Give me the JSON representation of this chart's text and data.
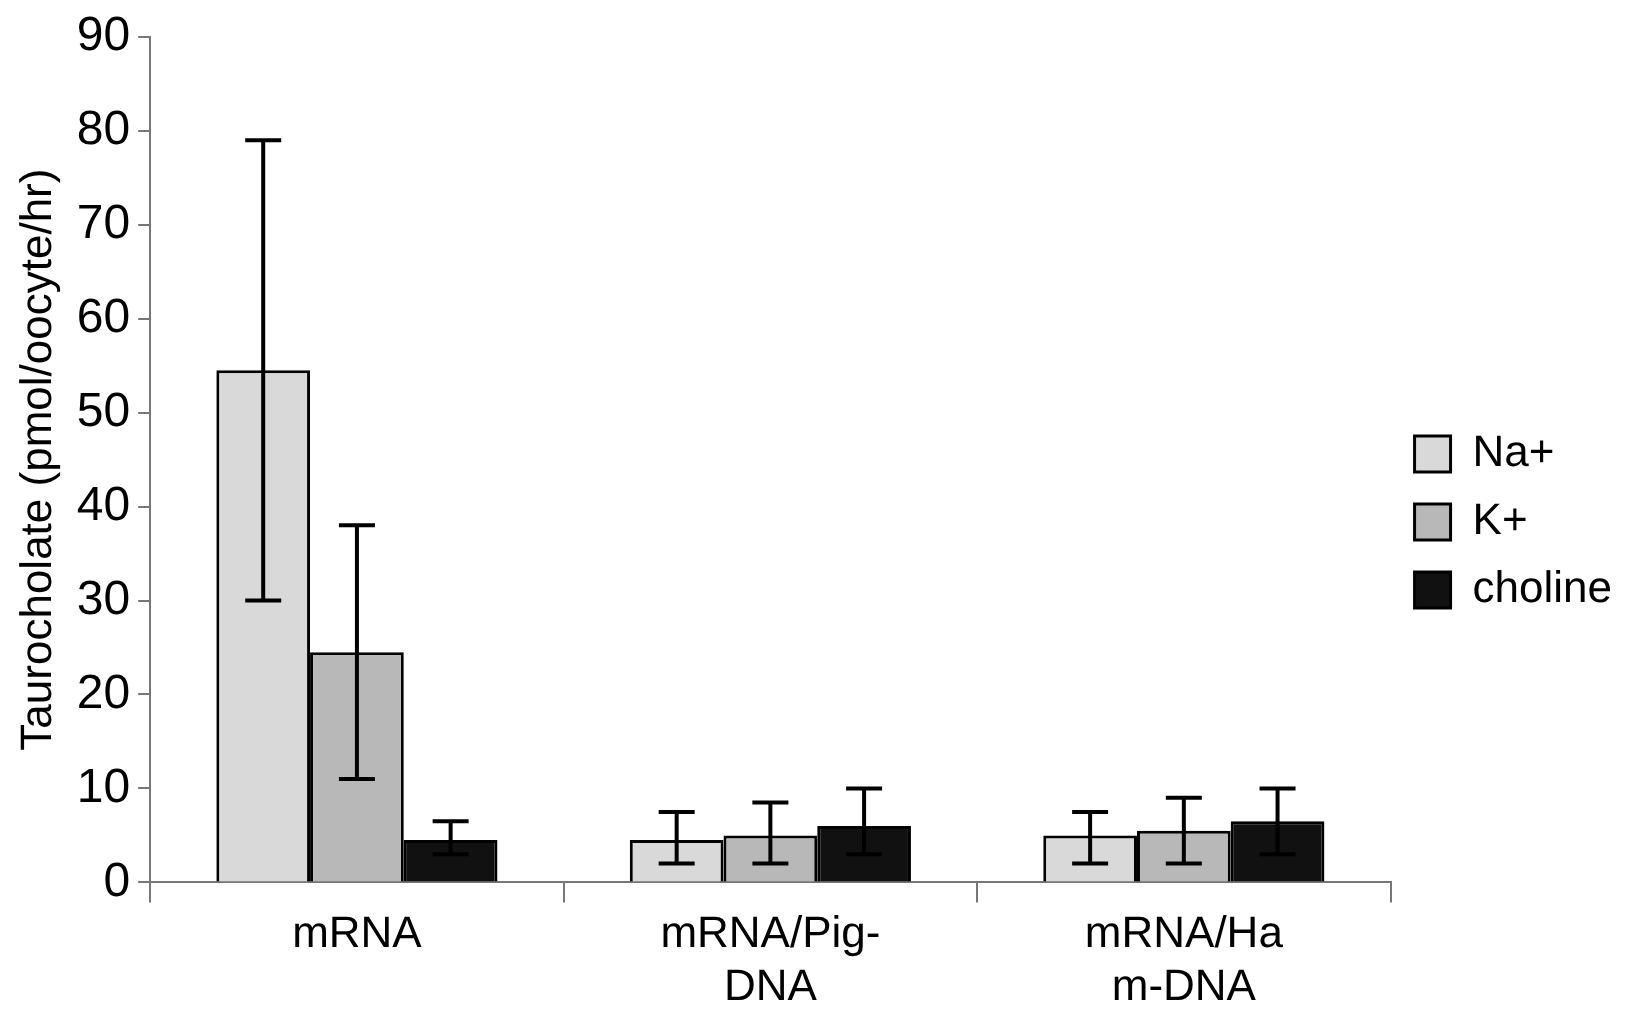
{
  "chart_data": {
    "type": "bar",
    "ylabel": "Taurocholate (pmol/oocyte/hr)",
    "categories": [
      "mRNA",
      "mRNA/Pig-\nDNA",
      "mRNA/Ha\nm-DNA"
    ],
    "series": [
      {
        "name": "Na+",
        "color": "#d9d9d9",
        "values": [
          54.5,
          4.5,
          5
        ],
        "errors": [
          [
            30,
            79
          ],
          [
            2,
            7.5
          ],
          [
            2,
            7.5
          ]
        ]
      },
      {
        "name": "K+",
        "color": "#b8b8b8",
        "values": [
          24.5,
          5,
          5.5
        ],
        "errors": [
          [
            11,
            38
          ],
          [
            2,
            8.5
          ],
          [
            2,
            9
          ]
        ]
      },
      {
        "name": "choline",
        "color": "#111111",
        "values": [
          4.5,
          6,
          6.5
        ],
        "errors": [
          [
            3,
            6.5
          ],
          [
            3,
            10
          ],
          [
            3,
            10
          ]
        ]
      }
    ],
    "ylim": [
      0,
      90
    ],
    "yticks": [
      0,
      10,
      20,
      30,
      40,
      50,
      60,
      70,
      80,
      90
    ],
    "grid": false,
    "legend": "right"
  }
}
